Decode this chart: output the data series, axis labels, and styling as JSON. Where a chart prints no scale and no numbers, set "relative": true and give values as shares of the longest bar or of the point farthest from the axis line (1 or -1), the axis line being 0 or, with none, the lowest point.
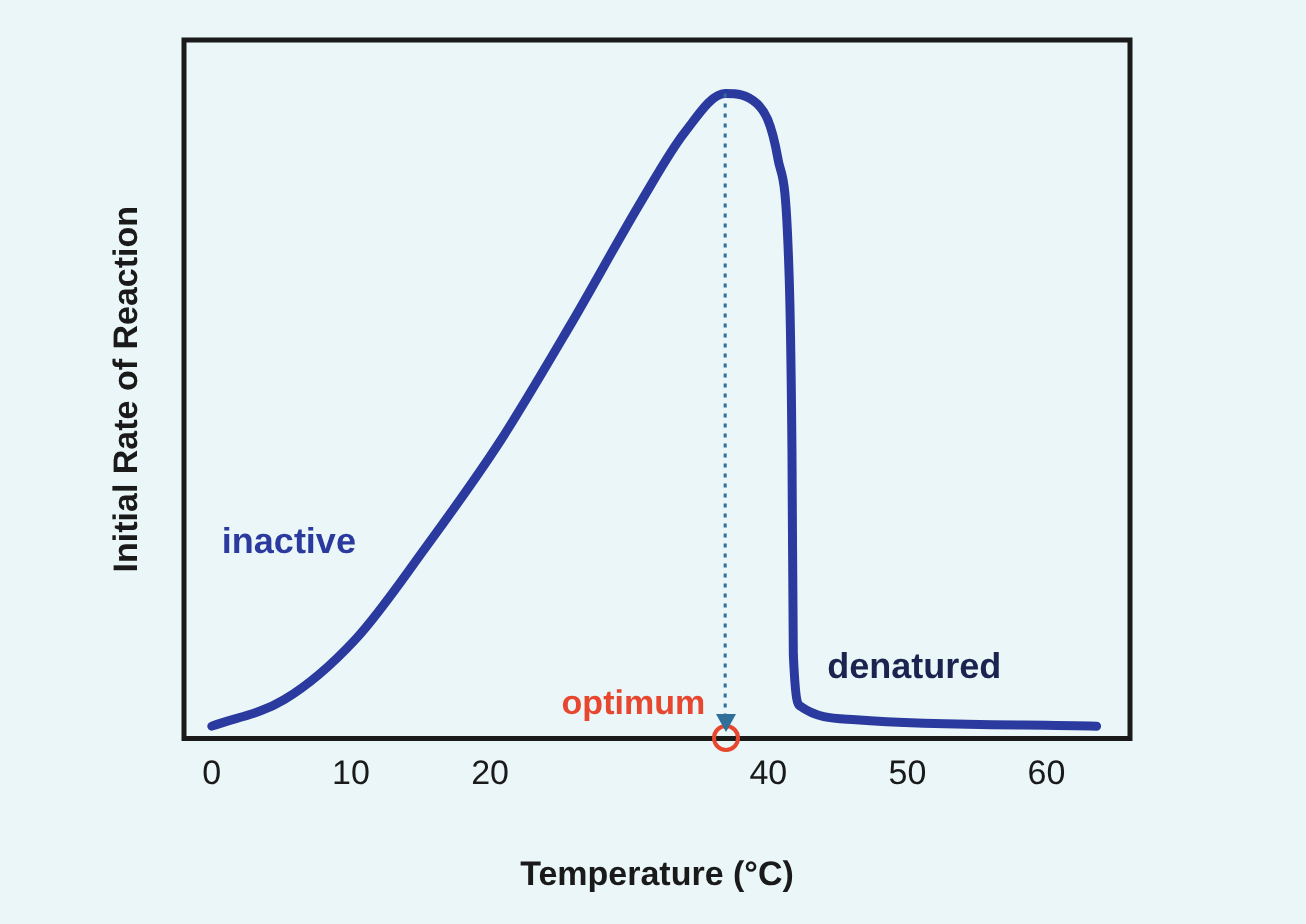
{
  "chart_data": {
    "type": "line",
    "xlabel": "Temperature (°C)",
    "ylabel": "Initial Rate of Reaction",
    "relative": true,
    "xlim": [
      -2,
      66
    ],
    "xticks": [
      0,
      10,
      20,
      40,
      50,
      60
    ],
    "series": [
      {
        "color": "#2b3a9e",
        "x": [
          0,
          5.2,
          10.3,
          15.4,
          20.7,
          25.8,
          30.9,
          34,
          36.9,
          39.2,
          40.7,
          41.5,
          41.7,
          41.8,
          42.3,
          46.3,
          63.6
        ],
        "values": [
          0.019,
          0.06,
          0.153,
          0.297,
          0.46,
          0.642,
          0.834,
          0.94,
          1,
          0.984,
          0.898,
          0.716,
          0.45,
          0.13,
          0.05,
          0.029,
          0.019
        ]
      }
    ],
    "ref_lines": [
      {
        "axis": "x",
        "value": 36.9,
        "label": "optimum",
        "color": "#2f6f9a",
        "line_style": "dotted"
      }
    ],
    "annotations": [
      "inactive",
      "denatured"
    ],
    "grid": false,
    "legend": false,
    "marker": "none",
    "line_style": "solid"
  }
}
